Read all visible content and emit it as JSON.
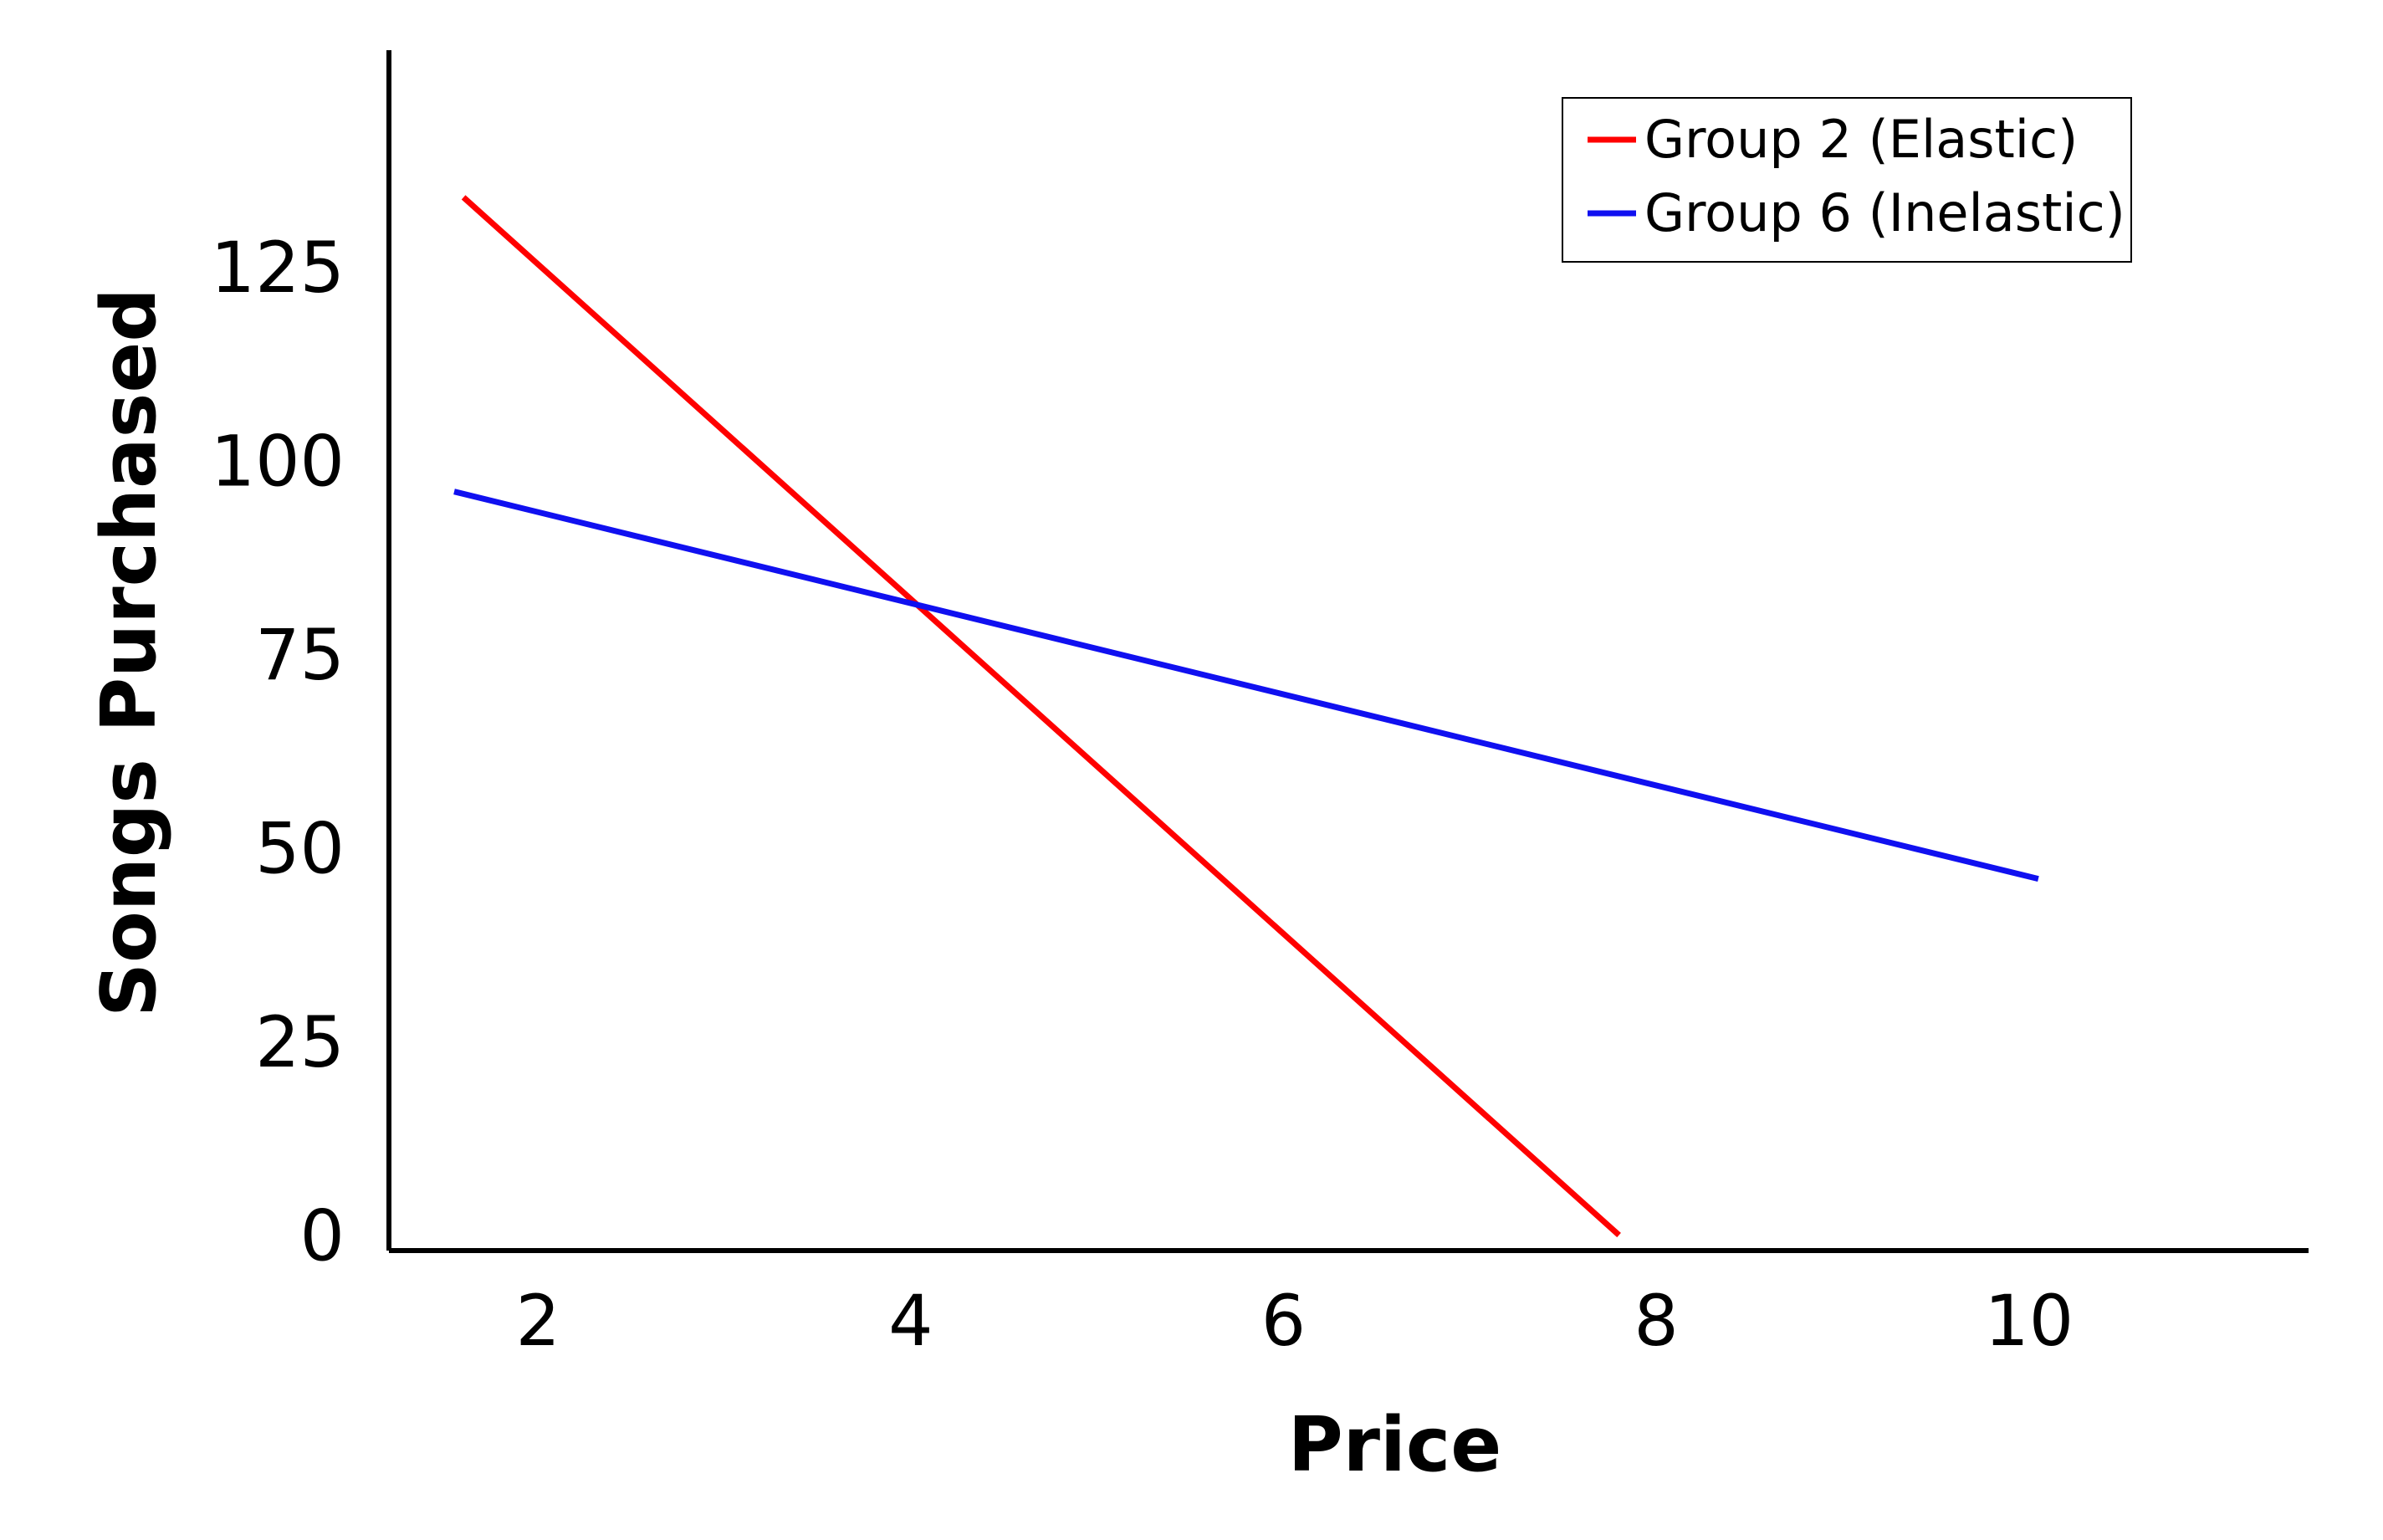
{
  "chart_data": {
    "type": "line",
    "xlabel": "Price",
    "ylabel": "Songs Purchased",
    "xlim": [
      1.2,
      11.5
    ],
    "ylim": [
      -2,
      153
    ],
    "x_ticks": [
      2,
      4,
      6,
      8,
      10
    ],
    "y_ticks": [
      0,
      25,
      50,
      75,
      100,
      125
    ],
    "x_tick_labels": [
      "2",
      "4",
      "6",
      "8",
      "10"
    ],
    "y_tick_labels": [
      "0",
      "25",
      "50",
      "75",
      "100",
      "125"
    ],
    "grid": false,
    "legend_position": "top-right",
    "series": [
      {
        "name": "Group 2 (Elastic)",
        "color": "#ff0000",
        "x": [
          1.6,
          7.8
        ],
        "y": [
          134,
          0
        ]
      },
      {
        "name": "Group 6 (Inelastic)",
        "color": "#1010f0",
        "x": [
          1.55,
          10.05
        ],
        "y": [
          96,
          46
        ]
      }
    ]
  }
}
